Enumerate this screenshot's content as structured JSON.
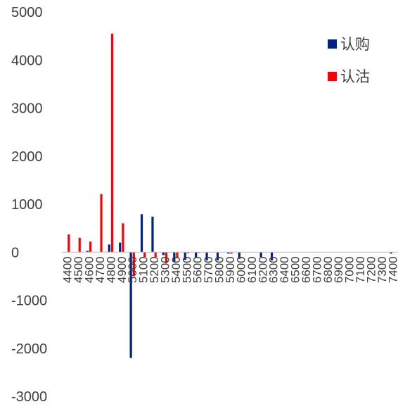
{
  "chart_data": {
    "type": "bar",
    "title": "",
    "xlabel": "",
    "ylabel": "",
    "ylim": [
      -3000,
      5000
    ],
    "yticks": [
      5000,
      4000,
      3000,
      2000,
      1000,
      0,
      -1000,
      -2000,
      -3000
    ],
    "grid": false,
    "legend_position": "top-right",
    "categories": [
      "4400",
      "4500",
      "4600",
      "4700",
      "4800",
      "4900",
      "5000",
      "5100",
      "5200",
      "5300",
      "5400",
      "5500",
      "5600",
      "5700",
      "5800",
      "5900",
      "6000",
      "6100",
      "6200",
      "6300",
      "6400",
      "6500",
      "6600",
      "6700",
      "6800",
      "6900",
      "7000",
      "7100",
      "7200",
      "7300",
      "7400"
    ],
    "series": [
      {
        "name": "认购",
        "color": "#002288",
        "values": [
          0,
          0,
          30,
          0,
          160,
          200,
          -2200,
          790,
          740,
          -60,
          -200,
          -160,
          -110,
          -170,
          -170,
          -30,
          -140,
          0,
          -100,
          -170,
          0,
          0,
          0,
          0,
          0,
          0,
          0,
          0,
          0,
          0,
          -30
        ]
      },
      {
        "name": "认沽",
        "color": "#ff0000",
        "values": [
          370,
          300,
          220,
          1210,
          4550,
          600,
          -500,
          -100,
          -100,
          -230,
          -120,
          -20,
          -10,
          0,
          0,
          -30,
          0,
          0,
          0,
          0,
          0,
          0,
          0,
          0,
          0,
          0,
          0,
          0,
          0,
          0,
          0
        ]
      }
    ]
  }
}
